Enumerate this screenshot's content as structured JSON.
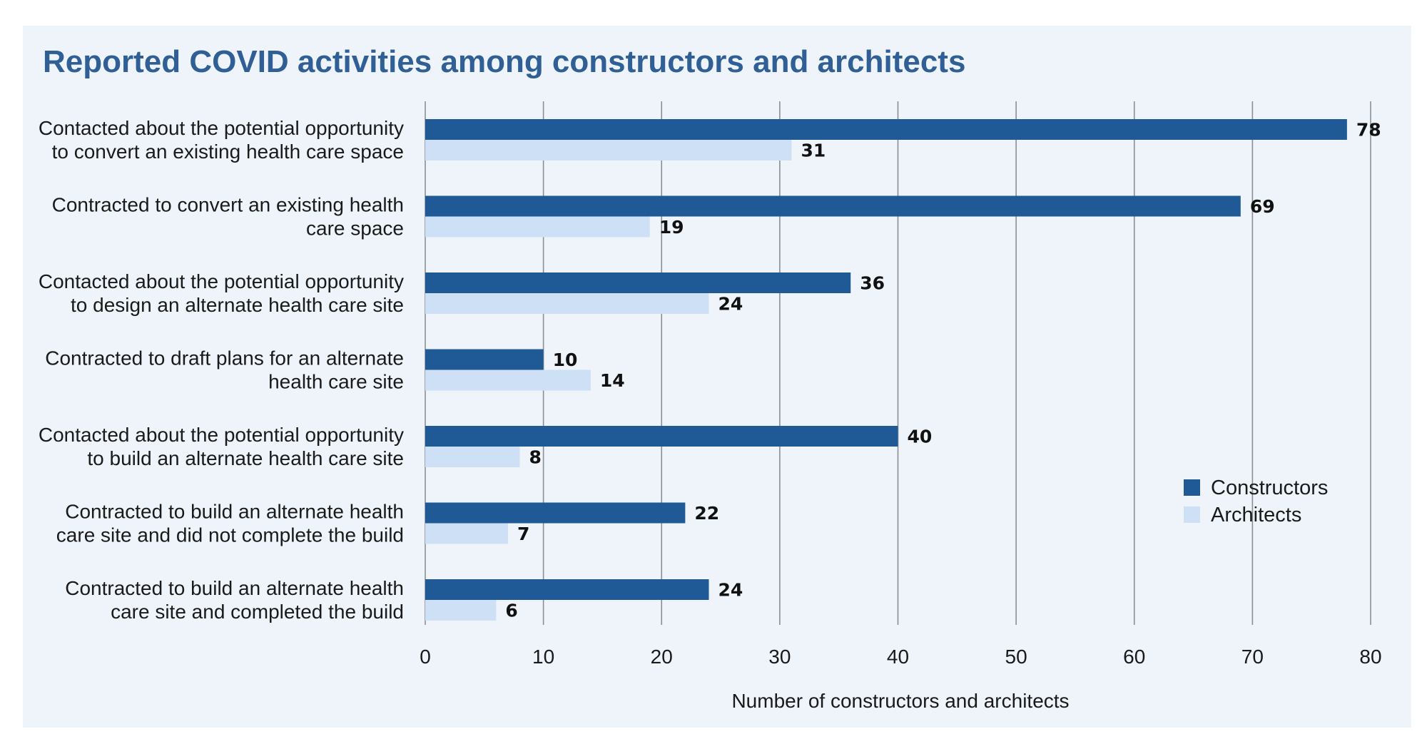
{
  "chart_data": {
    "type": "bar",
    "orientation": "horizontal",
    "title": "Reported COVID activities among constructors and architects",
    "xlabel": "Number of constructors and architects",
    "ylabel": "",
    "xlim": [
      0,
      80
    ],
    "xticks": [
      0,
      10,
      20,
      30,
      40,
      50,
      60,
      70,
      80
    ],
    "grid": true,
    "legend_position": "right",
    "categories": [
      [
        "Contacted about the potential opportunity",
        "to convert an existing health care space"
      ],
      [
        "Contracted to convert an existing health",
        "care space"
      ],
      [
        "Contacted about the potential opportunity",
        "to design an alternate health care site"
      ],
      [
        "Contracted to draft plans for an alternate",
        "health care site"
      ],
      [
        "Contacted about the potential opportunity",
        "to build an alternate health care site"
      ],
      [
        "Contracted to build an alternate health",
        "care site and did not complete the build"
      ],
      [
        "Contracted to build an alternate health",
        "care site and completed the build"
      ]
    ],
    "series": [
      {
        "name": "Constructors",
        "color": "#1f5a96",
        "values": [
          78,
          69,
          36,
          10,
          40,
          22,
          24
        ]
      },
      {
        "name": "Architects",
        "color": "#cde0f5",
        "values": [
          31,
          19,
          24,
          14,
          8,
          7,
          6
        ]
      }
    ]
  },
  "colors": {
    "panel": "#eef4fa",
    "title": "#2f5f95",
    "grid": "#8a8f94"
  }
}
